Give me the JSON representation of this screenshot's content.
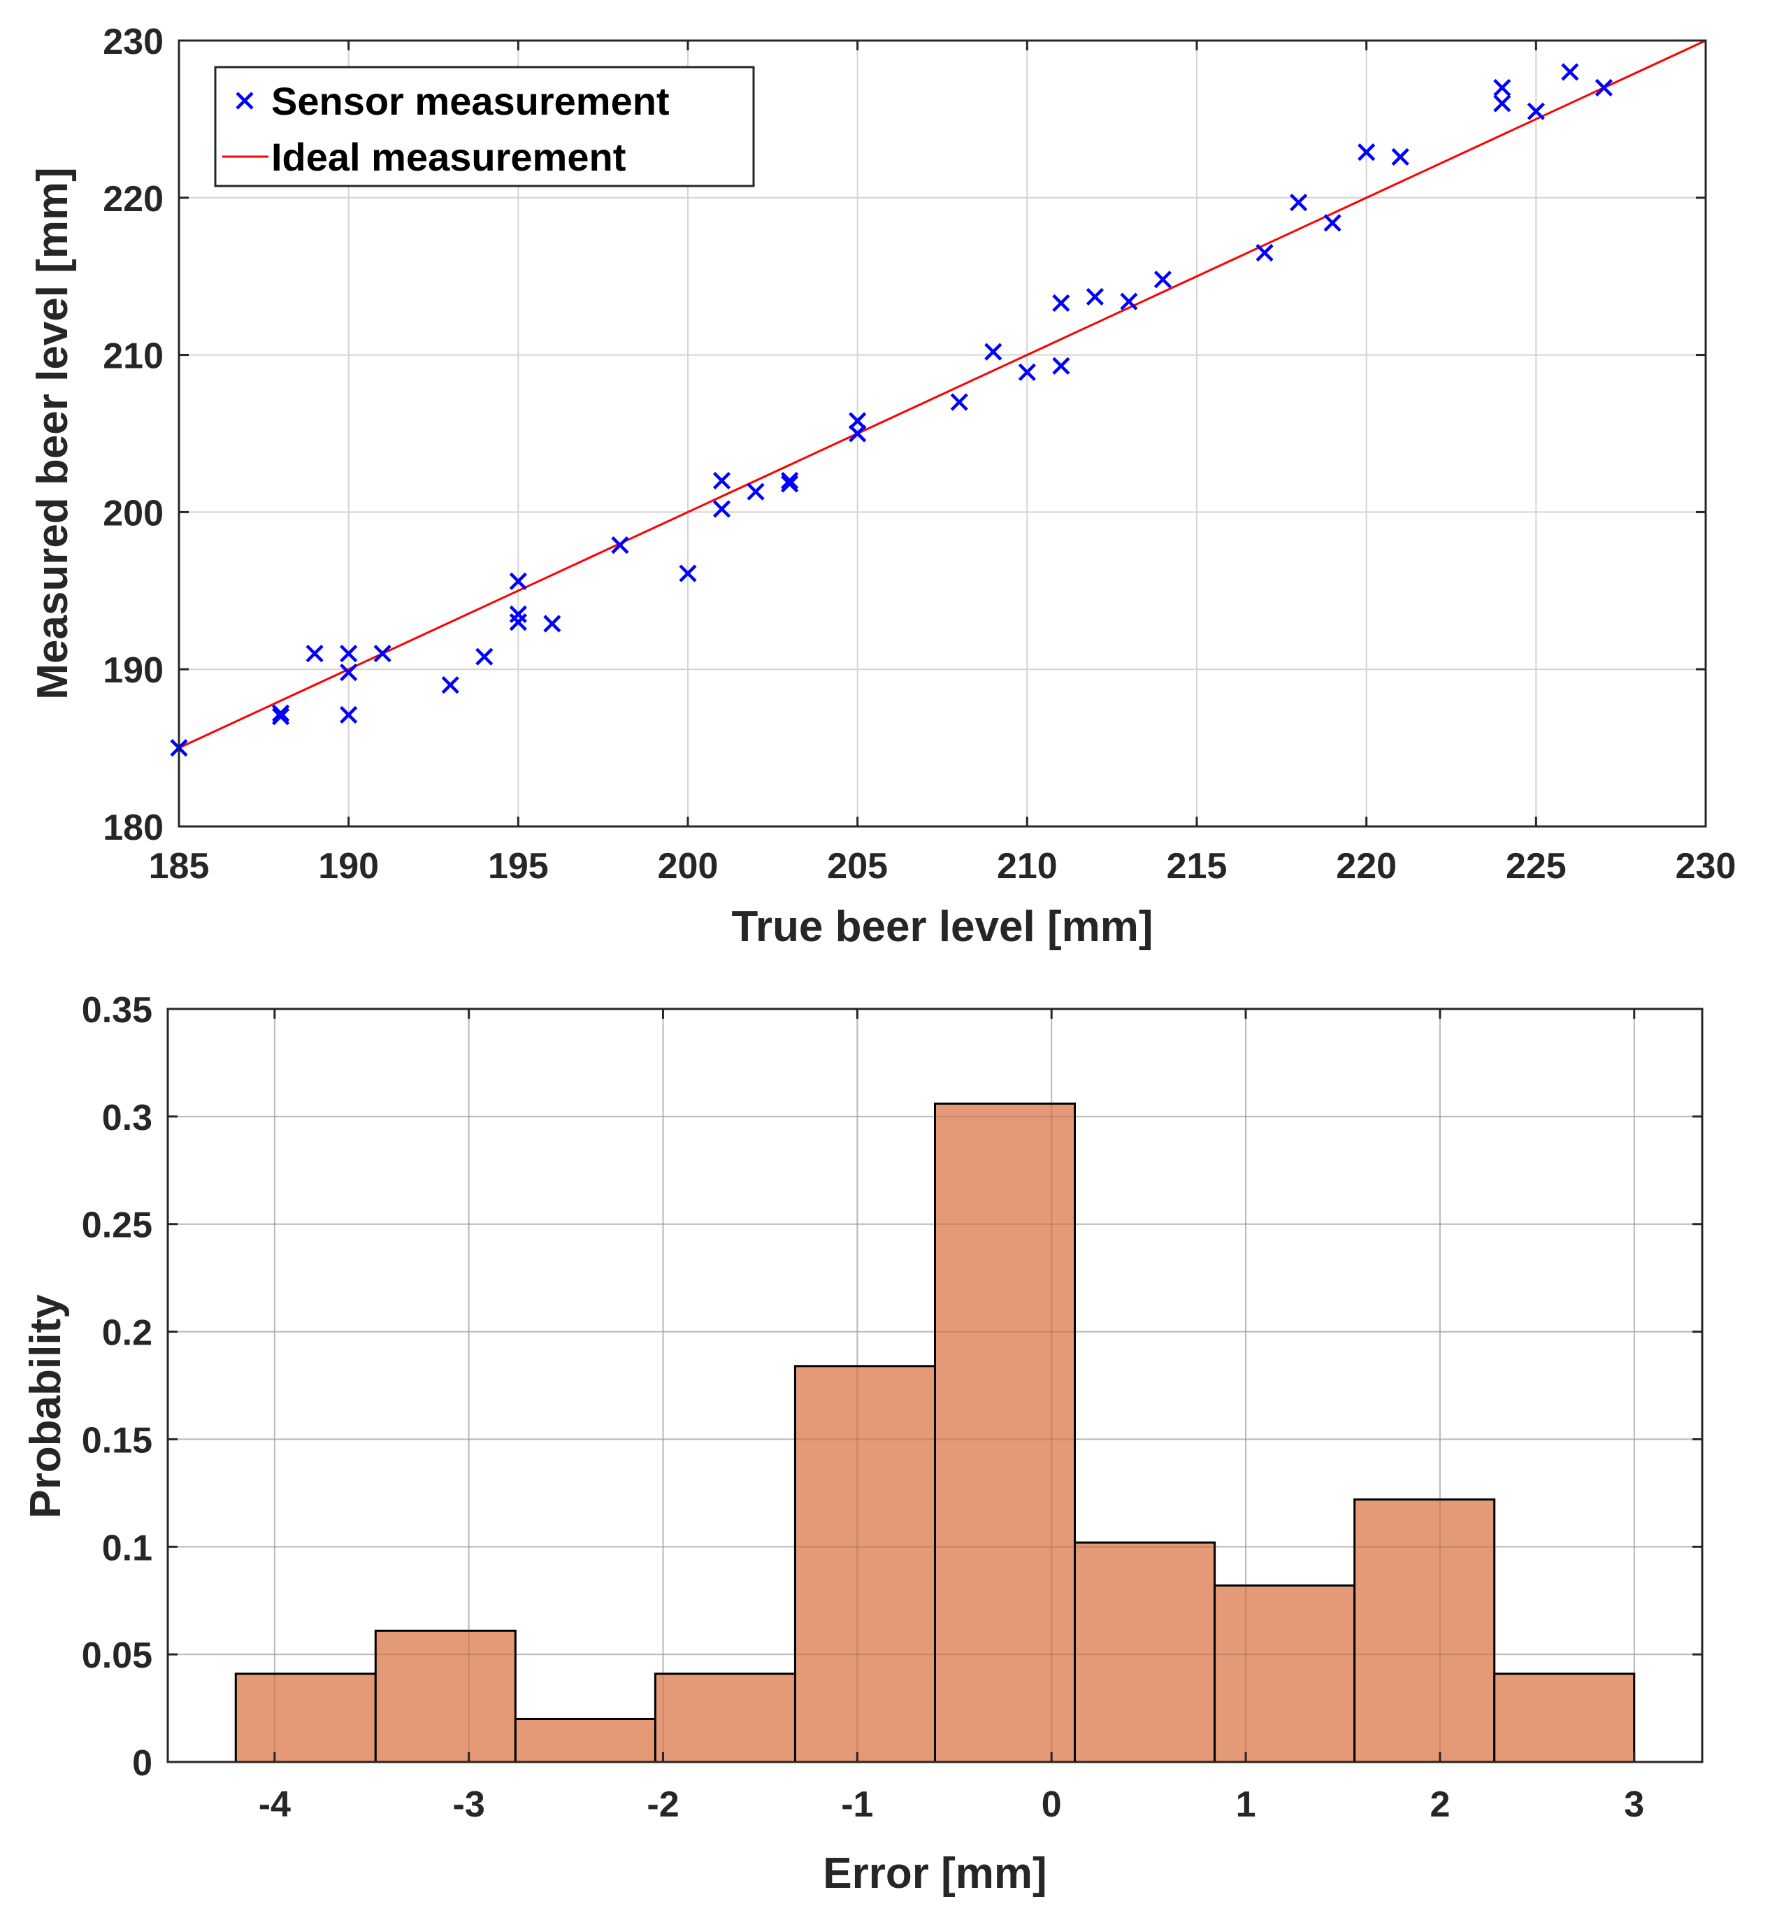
{
  "chart_data": [
    {
      "type": "scatter",
      "xlabel": "True beer level [mm]",
      "ylabel": "Measured beer level [mm]",
      "xlim": [
        185,
        230
      ],
      "ylim": [
        180,
        230
      ],
      "xticks": [
        185,
        190,
        195,
        200,
        205,
        210,
        215,
        220,
        225,
        230
      ],
      "yticks": [
        180,
        190,
        200,
        210,
        220,
        230
      ],
      "grid": true,
      "legend_position": "top-left",
      "series": [
        {
          "name": "Sensor measurement",
          "marker": "x",
          "color": "#0000ff",
          "points": [
            [
              185,
              185
            ],
            [
              188,
              187
            ],
            [
              188,
              187.2
            ],
            [
              189,
              191
            ],
            [
              190,
              191
            ],
            [
              190,
              189.8
            ],
            [
              190,
              187.1
            ],
            [
              191,
              191
            ],
            [
              193,
              189
            ],
            [
              194,
              190.8
            ],
            [
              195,
              195.6
            ],
            [
              195,
              193.5
            ],
            [
              195,
              193
            ],
            [
              196,
              192.9
            ],
            [
              198,
              197.9
            ],
            [
              200,
              196.1
            ],
            [
              201,
              202
            ],
            [
              201,
              200.2
            ],
            [
              202,
              201.3
            ],
            [
              203,
              202
            ],
            [
              203,
              201.8
            ],
            [
              205,
              205.8
            ],
            [
              205,
              205
            ],
            [
              208,
              207
            ],
            [
              209,
              210.2
            ],
            [
              210,
              208.9
            ],
            [
              211,
              213.3
            ],
            [
              211,
              209.3
            ],
            [
              212,
              213.7
            ],
            [
              213,
              213.4
            ],
            [
              214,
              214.8
            ],
            [
              217,
              216.5
            ],
            [
              218,
              219.7
            ],
            [
              219,
              218.4
            ],
            [
              220,
              222.9
            ],
            [
              221,
              222.6
            ],
            [
              224,
              227
            ],
            [
              224,
              226
            ],
            [
              225,
              225.5
            ],
            [
              226,
              228
            ],
            [
              227,
              227
            ]
          ]
        },
        {
          "name": "Ideal measurement",
          "type": "line",
          "color": "#ff0000",
          "x": [
            185,
            230
          ],
          "y": [
            185,
            230
          ]
        }
      ]
    },
    {
      "type": "bar",
      "subtype": "histogram",
      "xlabel": "Error [mm]",
      "ylabel": "Probability",
      "xlim": [
        -4.55,
        3.35
      ],
      "ylim": [
        0,
        0.35
      ],
      "xticks": [
        -4,
        -3,
        -2,
        -1,
        0,
        1,
        2,
        3
      ],
      "yticks": [
        0,
        0.05,
        0.1,
        0.15,
        0.2,
        0.25,
        0.3,
        0.35
      ],
      "ytick_labels": [
        "0",
        "0.05",
        "0.1",
        "0.15",
        "0.2",
        "0.25",
        "0.3",
        "0.35"
      ],
      "grid": true,
      "bar_color": "#e59a77",
      "edge_color": "#000000",
      "bin_edges": [
        -4.2,
        -3.48,
        -2.76,
        -2.04,
        -1.32,
        -0.6,
        0.12,
        0.84,
        1.56,
        2.28,
        3.0
      ],
      "values": [
        0.041,
        0.061,
        0.02,
        0.041,
        0.184,
        0.306,
        0.102,
        0.082,
        0.122,
        0.041
      ]
    }
  ]
}
